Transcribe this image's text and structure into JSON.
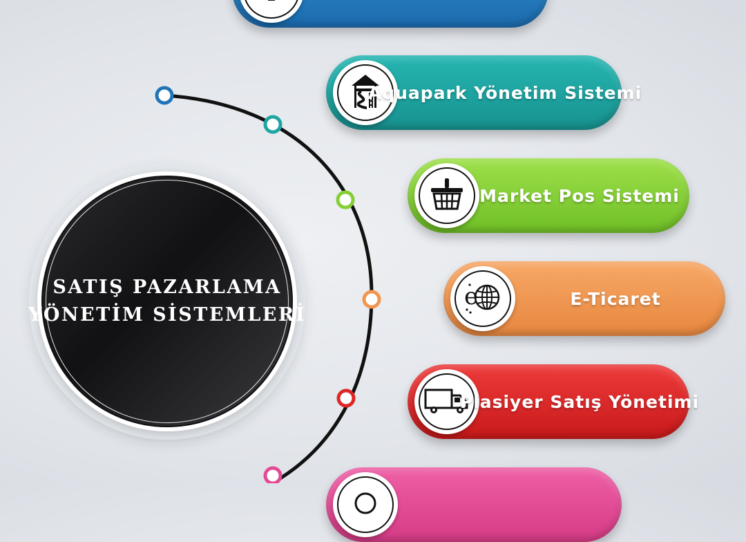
{
  "hub": {
    "title_line1": "SATIŞ PAZARLAMA",
    "title_line2": "YÖNETİM SİSTEMLERİ"
  },
  "items": [
    {
      "label": "",
      "icon": "monitor-icon",
      "color": "#1f74b8"
    },
    {
      "label": "Aquapark Yönetim Sistemi",
      "icon": "waterslide-icon",
      "color": "#1ea5a2"
    },
    {
      "label": "Market Pos Sistemi",
      "icon": "shopping-basket-icon",
      "color": "#85cf35"
    },
    {
      "label": "E-Ticaret",
      "icon": "e-globe-icon",
      "color": "#f0964f"
    },
    {
      "label": "Plasiyer Satış Yönetimi",
      "icon": "delivery-truck-icon",
      "color": "#dd2626"
    },
    {
      "label": "",
      "icon": "pink-item-icon",
      "color": "#e24a95"
    }
  ],
  "nodes": [
    {
      "color": "#1f74b8"
    },
    {
      "color": "#1ea5a2"
    },
    {
      "color": "#85cf35"
    },
    {
      "color": "#f0964f"
    },
    {
      "color": "#dd2626"
    },
    {
      "color": "#e24a95"
    }
  ]
}
